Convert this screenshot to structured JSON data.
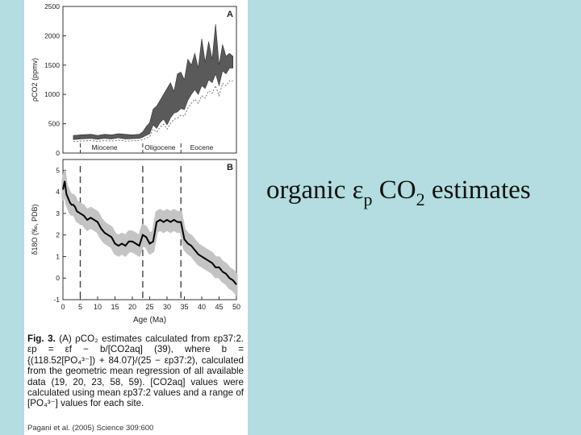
{
  "slide": {
    "title_parts": [
      "organic ε",
      "p",
      " CO",
      "2",
      " estimates"
    ]
  },
  "figure": {
    "caption_lead": "Fig. 3.",
    "caption_text": "(A) ρCO₂ estimates calculated from εp37:2. εp = εf − b/[CO2aq] (39), where b = {(118.52[PO₄³⁻]) + 84.07}/(25 − εp37:2), calculated from the geometric mean regression of all available data (19, 20, 23, 58, 59). [CO2aq] values were calculated using mean εp37:2 values and a range of [PO₄³⁻] values for each site.",
    "credit": "Pagani et al. (2005) Science 309:600"
  },
  "chart_data": [
    {
      "panel": "A",
      "type": "area",
      "ylabel": "ρCO2 (ppmv)",
      "xlabel": "",
      "ylim": [
        0,
        2500
      ],
      "xlim": [
        0,
        50
      ],
      "yticks": [
        0,
        500,
        1000,
        1500,
        2000,
        2500
      ],
      "epoch_labels": [
        {
          "text": "Miocene",
          "x": 12
        },
        {
          "text": "Oligocene",
          "x": 28
        },
        {
          "text": "Eocene",
          "x": 40
        }
      ],
      "dividers": [
        5,
        23,
        34
      ],
      "grid": false,
      "series": [
        {
          "band": true,
          "x": [
            3,
            5,
            8,
            10,
            12,
            14,
            16,
            18,
            20,
            22,
            23,
            24,
            25,
            26,
            27,
            28,
            29,
            30,
            31,
            32,
            33,
            34,
            35,
            36,
            37,
            38,
            39,
            40,
            41,
            42,
            43,
            44,
            45,
            46,
            47,
            48,
            49
          ],
          "lower": [
            230,
            240,
            250,
            235,
            250,
            240,
            260,
            240,
            245,
            250,
            270,
            300,
            330,
            480,
            420,
            520,
            580,
            480,
            600,
            680,
            700,
            760,
            740,
            900,
            1000,
            1080,
            1000,
            1150,
            1100,
            1250,
            1200,
            1350,
            1150,
            1400,
            1350,
            1450,
            1450
          ],
          "upper": [
            300,
            310,
            320,
            300,
            320,
            310,
            330,
            320,
            310,
            320,
            360,
            450,
            520,
            750,
            800,
            900,
            1000,
            1100,
            1200,
            1050,
            1350,
            1380,
            1250,
            1600,
            1500,
            1700,
            1450,
            1950,
            1550,
            1900,
            1600,
            2200,
            1500,
            1850,
            1650,
            1700,
            1650
          ]
        }
      ]
    },
    {
      "panel": "B",
      "type": "line",
      "ylabel": "δ18O (‰, PDB)",
      "xlabel": "Age (Ma)",
      "xlim": [
        0,
        50
      ],
      "ylim": [
        -1,
        5.5
      ],
      "xticks": [
        0,
        5,
        10,
        15,
        20,
        25,
        30,
        35,
        40,
        45,
        50
      ],
      "yticks": [
        -1,
        0,
        1,
        2,
        3,
        4,
        5
      ],
      "dividers": [
        5,
        23,
        34
      ],
      "grid": false,
      "series": [
        {
          "x": [
            0,
            0.5,
            1,
            1.5,
            2,
            2.5,
            3,
            3.5,
            4,
            5,
            6,
            7,
            8,
            9,
            10,
            11,
            12,
            13,
            14,
            15,
            16,
            17,
            18,
            19,
            20,
            21,
            22,
            23,
            24,
            25,
            26,
            27,
            28,
            29,
            30,
            31,
            32,
            33,
            34,
            35,
            36,
            37,
            38,
            39,
            40,
            41,
            42,
            43,
            44,
            45,
            46,
            47,
            48,
            49,
            50
          ],
          "y": [
            4.1,
            4.5,
            3.9,
            3.7,
            3.5,
            3.4,
            3.4,
            3.3,
            3.1,
            3.0,
            2.9,
            2.7,
            2.8,
            2.7,
            2.6,
            2.3,
            2.1,
            2.0,
            1.9,
            1.6,
            1.5,
            1.6,
            1.5,
            1.7,
            1.7,
            1.6,
            1.5,
            2.0,
            1.9,
            1.6,
            1.7,
            2.6,
            2.7,
            2.6,
            2.7,
            2.6,
            2.7,
            2.6,
            2.6,
            1.8,
            1.6,
            1.5,
            1.3,
            1.1,
            1.0,
            0.9,
            0.8,
            0.7,
            0.5,
            0.5,
            0.3,
            0.2,
            0.0,
            -0.1,
            -0.3
          ]
        },
        {
          "name": "",
          "band": true,
          "spread": 0.45
        }
      ]
    }
  ]
}
